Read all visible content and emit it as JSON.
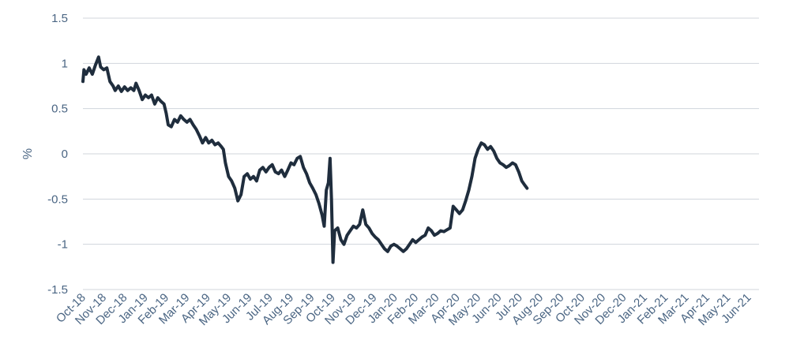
{
  "chart_data": {
    "type": "line",
    "title": "",
    "xlabel": "",
    "ylabel": "%",
    "ylim": [
      -1.5,
      1.5
    ],
    "yticks": [
      "1.5",
      "1",
      "0.5",
      "0",
      "-0.5",
      "-1",
      "-1.5"
    ],
    "grid": true,
    "legend": "none",
    "line_color": "#1f2d3d",
    "categories": [
      "Oct-18",
      "Nov-18",
      "Dec-18",
      "Jan-19",
      "Feb-19",
      "Mar-19",
      "Apr-19",
      "May-19",
      "Jun-19",
      "Jul-19",
      "Aug-19",
      "Sep-19",
      "Oct-19",
      "Nov-19",
      "Dec-19",
      "Jan-20",
      "Feb-20",
      "Mar-20",
      "Apr-20",
      "May-20",
      "Jun-20",
      "Jul-20",
      "Aug-20",
      "Sep-20",
      "Oct-20",
      "Nov-20",
      "Dec-20",
      "Jan-21",
      "Feb-21",
      "Mar-21",
      "Apr-21",
      "May-21",
      "Jun-21"
    ],
    "series": [
      {
        "values": [
          [
            0.0,
            0.8
          ],
          [
            0.05,
            0.93
          ],
          [
            0.15,
            0.88
          ],
          [
            0.3,
            0.95
          ],
          [
            0.45,
            0.88
          ],
          [
            0.6,
            0.98
          ],
          [
            0.75,
            1.07
          ],
          [
            0.85,
            0.96
          ],
          [
            1.0,
            0.93
          ],
          [
            1.15,
            0.95
          ],
          [
            1.3,
            0.8
          ],
          [
            1.45,
            0.75
          ],
          [
            1.55,
            0.7
          ],
          [
            1.7,
            0.75
          ],
          [
            1.85,
            0.69
          ],
          [
            2.0,
            0.74
          ],
          [
            2.15,
            0.7
          ],
          [
            2.3,
            0.73
          ],
          [
            2.45,
            0.7
          ],
          [
            2.55,
            0.78
          ],
          [
            2.7,
            0.7
          ],
          [
            2.85,
            0.6
          ],
          [
            3.0,
            0.65
          ],
          [
            3.15,
            0.62
          ],
          [
            3.3,
            0.65
          ],
          [
            3.45,
            0.55
          ],
          [
            3.6,
            0.62
          ],
          [
            3.75,
            0.58
          ],
          [
            3.9,
            0.55
          ],
          [
            4.0,
            0.45
          ],
          [
            4.1,
            0.32
          ],
          [
            4.25,
            0.3
          ],
          [
            4.4,
            0.38
          ],
          [
            4.55,
            0.35
          ],
          [
            4.7,
            0.42
          ],
          [
            4.85,
            0.38
          ],
          [
            5.0,
            0.35
          ],
          [
            5.15,
            0.38
          ],
          [
            5.3,
            0.32
          ],
          [
            5.45,
            0.27
          ],
          [
            5.6,
            0.2
          ],
          [
            5.75,
            0.12
          ],
          [
            5.9,
            0.18
          ],
          [
            6.05,
            0.12
          ],
          [
            6.2,
            0.15
          ],
          [
            6.35,
            0.1
          ],
          [
            6.5,
            0.12
          ],
          [
            6.65,
            0.08
          ],
          [
            6.75,
            0.05
          ],
          [
            6.85,
            -0.1
          ],
          [
            7.0,
            -0.25
          ],
          [
            7.15,
            -0.3
          ],
          [
            7.3,
            -0.38
          ],
          [
            7.45,
            -0.52
          ],
          [
            7.6,
            -0.45
          ],
          [
            7.75,
            -0.25
          ],
          [
            7.9,
            -0.22
          ],
          [
            8.05,
            -0.28
          ],
          [
            8.2,
            -0.25
          ],
          [
            8.35,
            -0.3
          ],
          [
            8.5,
            -0.18
          ],
          [
            8.65,
            -0.15
          ],
          [
            8.8,
            -0.2
          ],
          [
            8.95,
            -0.15
          ],
          [
            9.1,
            -0.12
          ],
          [
            9.25,
            -0.2
          ],
          [
            9.4,
            -0.22
          ],
          [
            9.55,
            -0.18
          ],
          [
            9.7,
            -0.25
          ],
          [
            9.85,
            -0.18
          ],
          [
            10.0,
            -0.1
          ],
          [
            10.15,
            -0.12
          ],
          [
            10.3,
            -0.05
          ],
          [
            10.45,
            -0.03
          ],
          [
            10.6,
            -0.15
          ],
          [
            10.75,
            -0.22
          ],
          [
            10.9,
            -0.32
          ],
          [
            11.05,
            -0.38
          ],
          [
            11.2,
            -0.45
          ],
          [
            11.35,
            -0.55
          ],
          [
            11.5,
            -0.68
          ],
          [
            11.6,
            -0.8
          ],
          [
            11.7,
            -0.4
          ],
          [
            11.8,
            -0.32
          ],
          [
            11.88,
            -0.05
          ],
          [
            11.95,
            -0.5
          ],
          [
            12.02,
            -1.2
          ],
          [
            12.1,
            -0.85
          ],
          [
            12.25,
            -0.82
          ],
          [
            12.4,
            -0.95
          ],
          [
            12.55,
            -1.0
          ],
          [
            12.7,
            -0.9
          ],
          [
            12.85,
            -0.85
          ],
          [
            13.0,
            -0.8
          ],
          [
            13.15,
            -0.82
          ],
          [
            13.3,
            -0.78
          ],
          [
            13.45,
            -0.62
          ],
          [
            13.6,
            -0.78
          ],
          [
            13.75,
            -0.82
          ],
          [
            13.9,
            -0.88
          ],
          [
            14.05,
            -0.92
          ],
          [
            14.2,
            -0.95
          ],
          [
            14.35,
            -1.0
          ],
          [
            14.5,
            -1.05
          ],
          [
            14.65,
            -1.08
          ],
          [
            14.8,
            -1.02
          ],
          [
            14.95,
            -1.0
          ],
          [
            15.1,
            -1.02
          ],
          [
            15.25,
            -1.05
          ],
          [
            15.4,
            -1.08
          ],
          [
            15.55,
            -1.05
          ],
          [
            15.7,
            -1.0
          ],
          [
            15.85,
            -0.95
          ],
          [
            16.0,
            -0.98
          ],
          [
            16.15,
            -0.95
          ],
          [
            16.3,
            -0.92
          ],
          [
            16.45,
            -0.9
          ],
          [
            16.6,
            -0.82
          ],
          [
            16.75,
            -0.85
          ],
          [
            16.9,
            -0.9
          ],
          [
            17.05,
            -0.88
          ],
          [
            17.2,
            -0.85
          ],
          [
            17.35,
            -0.86
          ],
          [
            17.5,
            -0.84
          ],
          [
            17.65,
            -0.82
          ],
          [
            17.8,
            -0.58
          ],
          [
            17.95,
            -0.62
          ],
          [
            18.1,
            -0.66
          ],
          [
            18.25,
            -0.62
          ],
          [
            18.4,
            -0.52
          ],
          [
            18.55,
            -0.4
          ],
          [
            18.7,
            -0.25
          ],
          [
            18.85,
            -0.05
          ],
          [
            19.0,
            0.05
          ],
          [
            19.15,
            0.12
          ],
          [
            19.3,
            0.1
          ],
          [
            19.45,
            0.05
          ],
          [
            19.6,
            0.08
          ],
          [
            19.75,
            0.03
          ],
          [
            19.9,
            -0.05
          ],
          [
            20.05,
            -0.1
          ],
          [
            20.2,
            -0.12
          ],
          [
            20.35,
            -0.15
          ],
          [
            20.5,
            -0.13
          ],
          [
            20.65,
            -0.1
          ],
          [
            20.8,
            -0.12
          ],
          [
            20.95,
            -0.2
          ],
          [
            21.1,
            -0.3
          ],
          [
            21.25,
            -0.35
          ],
          [
            21.35,
            -0.38
          ]
        ]
      }
    ]
  }
}
